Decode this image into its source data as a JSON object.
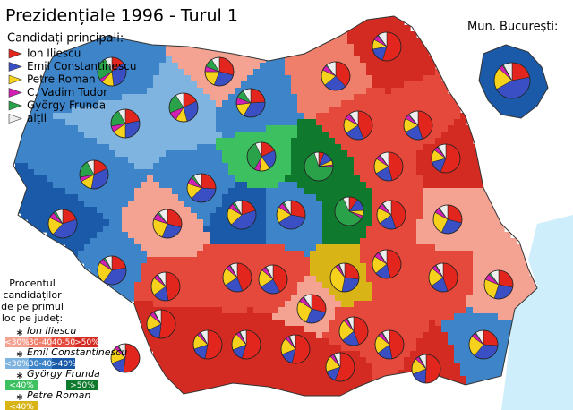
{
  "title": "Prezidențiale 1996 - Turul 1",
  "legend": {
    "title": "Candidați principali:",
    "items": [
      {
        "label": "Ion Iliescu",
        "color": "#e3261d"
      },
      {
        "label": "Emil Constantinescu",
        "color": "#3b4fc4"
      },
      {
        "label": "Petre Roman",
        "color": "#f6d21c"
      },
      {
        "label": "C. Vadim Tudor",
        "color": "#d21fb4"
      },
      {
        "label": "György Frunda",
        "color": "#2aa24a"
      },
      {
        "label": "alții",
        "color": "#eeeeee"
      }
    ]
  },
  "inset": {
    "title": "Mun. București:",
    "color": "#1a5aa8",
    "shares": [
      22,
      45,
      20,
      4,
      1,
      8
    ]
  },
  "scale": {
    "title_lines": [
      "Procentul",
      "candidaților",
      "de pe primul",
      "loc pe județ:"
    ],
    "groups": [
      {
        "name": "Ion Iliescu",
        "classes": [
          {
            "label": "<30%",
            "color": "#f4a392"
          },
          {
            "label": "30-40",
            "color": "#ef7f6b"
          },
          {
            "label": "40-50",
            "color": "#e4493b"
          },
          {
            "label": ">50%",
            "color": "#d32b22"
          }
        ]
      },
      {
        "name": "Emil Constantinescu",
        "classes": [
          {
            "label": "<30%",
            "color": "#7fb3e0"
          },
          {
            "label": "30-40",
            "color": "#3e84c9"
          },
          {
            "label": ">40%",
            "color": "#1a5aa8"
          }
        ]
      },
      {
        "name": "György Frunda",
        "classes": [
          {
            "label": "<40%",
            "color": "#3cc060"
          },
          {
            "label": ">50%",
            "color": "#0f7a2e"
          }
        ]
      },
      {
        "name": "Petre Roman",
        "classes": [
          {
            "label": "<40%",
            "color": "#d8b416"
          }
        ]
      }
    ]
  },
  "counties": [
    {
      "color": "#3e84c9",
      "shares": [
        15,
        33,
        14,
        4,
        26,
        8
      ]
    },
    {
      "color": "#f4a392",
      "shares": [
        29,
        27,
        19,
        6,
        10,
        9
      ]
    },
    {
      "color": "#ef7f6b",
      "shares": [
        38,
        26,
        18,
        6,
        1,
        11
      ]
    },
    {
      "color": "#d32b22",
      "shares": [
        55,
        17,
        11,
        6,
        1,
        10
      ]
    },
    {
      "color": "#3e84c9",
      "shares": [
        18,
        35,
        14,
        5,
        20,
        8
      ]
    },
    {
      "color": "#7fb3e0",
      "shares": [
        22,
        28,
        15,
        7,
        20,
        8
      ]
    },
    {
      "color": "#3e84c9",
      "shares": [
        24,
        34,
        15,
        8,
        10,
        9
      ]
    },
    {
      "color": "#7fb3e0",
      "shares": [
        18,
        28,
        13,
        10,
        22,
        9
      ]
    },
    {
      "color": "#3cc060",
      "shares": [
        18,
        22,
        12,
        6,
        35,
        7
      ]
    },
    {
      "color": "#0f7a2e",
      "shares": [
        6,
        12,
        5,
        2,
        70,
        5
      ]
    },
    {
      "color": "#0f7a2e",
      "shares": [
        10,
        14,
        6,
        3,
        60,
        7
      ]
    },
    {
      "color": "#e4493b",
      "shares": [
        45,
        22,
        16,
        5,
        1,
        11
      ]
    },
    {
      "color": "#e4493b",
      "shares": [
        44,
        22,
        17,
        6,
        1,
        10
      ]
    },
    {
      "color": "#d32b22",
      "shares": [
        56,
        15,
        14,
        5,
        1,
        9
      ]
    },
    {
      "color": "#e4493b",
      "shares": [
        46,
        21,
        17,
        5,
        1,
        10
      ]
    },
    {
      "color": "#3e84c9",
      "shares": [
        26,
        36,
        18,
        8,
        3,
        9
      ]
    },
    {
      "color": "#1a5aa8",
      "shares": [
        20,
        42,
        20,
        7,
        3,
        8
      ]
    },
    {
      "color": "#f4a392",
      "shares": [
        29,
        27,
        24,
        8,
        2,
        10
      ]
    },
    {
      "color": "#1a5aa8",
      "shares": [
        20,
        43,
        20,
        6,
        3,
        8
      ]
    },
    {
      "color": "#3e84c9",
      "shares": [
        28,
        38,
        18,
        6,
        2,
        8
      ]
    },
    {
      "color": "#e4493b",
      "shares": [
        45,
        20,
        18,
        6,
        1,
        10
      ]
    },
    {
      "color": "#f4a392",
      "shares": [
        29,
        28,
        26,
        6,
        1,
        10
      ]
    },
    {
      "color": "#3e84c9",
      "shares": [
        22,
        38,
        24,
        6,
        2,
        8
      ]
    },
    {
      "color": "#d32b22",
      "shares": [
        52,
        16,
        18,
        5,
        1,
        8
      ]
    },
    {
      "color": "#e4493b",
      "shares": [
        47,
        18,
        20,
        5,
        1,
        9
      ]
    },
    {
      "color": "#e4493b",
      "shares": [
        44,
        22,
        20,
        5,
        1,
        8
      ]
    },
    {
      "color": "#e4493b",
      "shares": [
        42,
        24,
        20,
        5,
        1,
        8
      ]
    },
    {
      "color": "#f4a392",
      "shares": [
        29,
        27,
        28,
        6,
        1,
        9
      ]
    },
    {
      "color": "#d8b416",
      "shares": [
        27,
        26,
        36,
        4,
        1,
        6
      ]
    },
    {
      "color": "#e4493b",
      "shares": [
        46,
        18,
        20,
        6,
        1,
        9
      ]
    },
    {
      "color": "#e4493b",
      "shares": [
        45,
        20,
        21,
        5,
        1,
        8
      ]
    },
    {
      "color": "#f4a392",
      "shares": [
        28,
        27,
        26,
        7,
        2,
        10
      ]
    },
    {
      "color": "#d32b22",
      "shares": [
        53,
        17,
        17,
        4,
        1,
        8
      ]
    },
    {
      "color": "#d32b22",
      "shares": [
        55,
        14,
        19,
        4,
        1,
        7
      ]
    },
    {
      "color": "#d32b22",
      "shares": [
        54,
        15,
        19,
        4,
        1,
        7
      ]
    },
    {
      "color": "#d32b22",
      "shares": [
        56,
        14,
        18,
        4,
        1,
        7
      ]
    },
    {
      "color": "#e4493b",
      "shares": [
        44,
        20,
        24,
        4,
        1,
        7
      ]
    },
    {
      "color": "#e4493b",
      "shares": [
        47,
        18,
        21,
        5,
        1,
        8
      ]
    },
    {
      "color": "#d32b22",
      "shares": [
        51,
        18,
        18,
        4,
        1,
        8
      ]
    },
    {
      "color": "#3e84c9",
      "shares": [
        26,
        35,
        24,
        5,
        1,
        9
      ]
    },
    {
      "color": "#d32b22",
      "shares": [
        52,
        17,
        18,
        4,
        1,
        8
      ]
    }
  ]
}
